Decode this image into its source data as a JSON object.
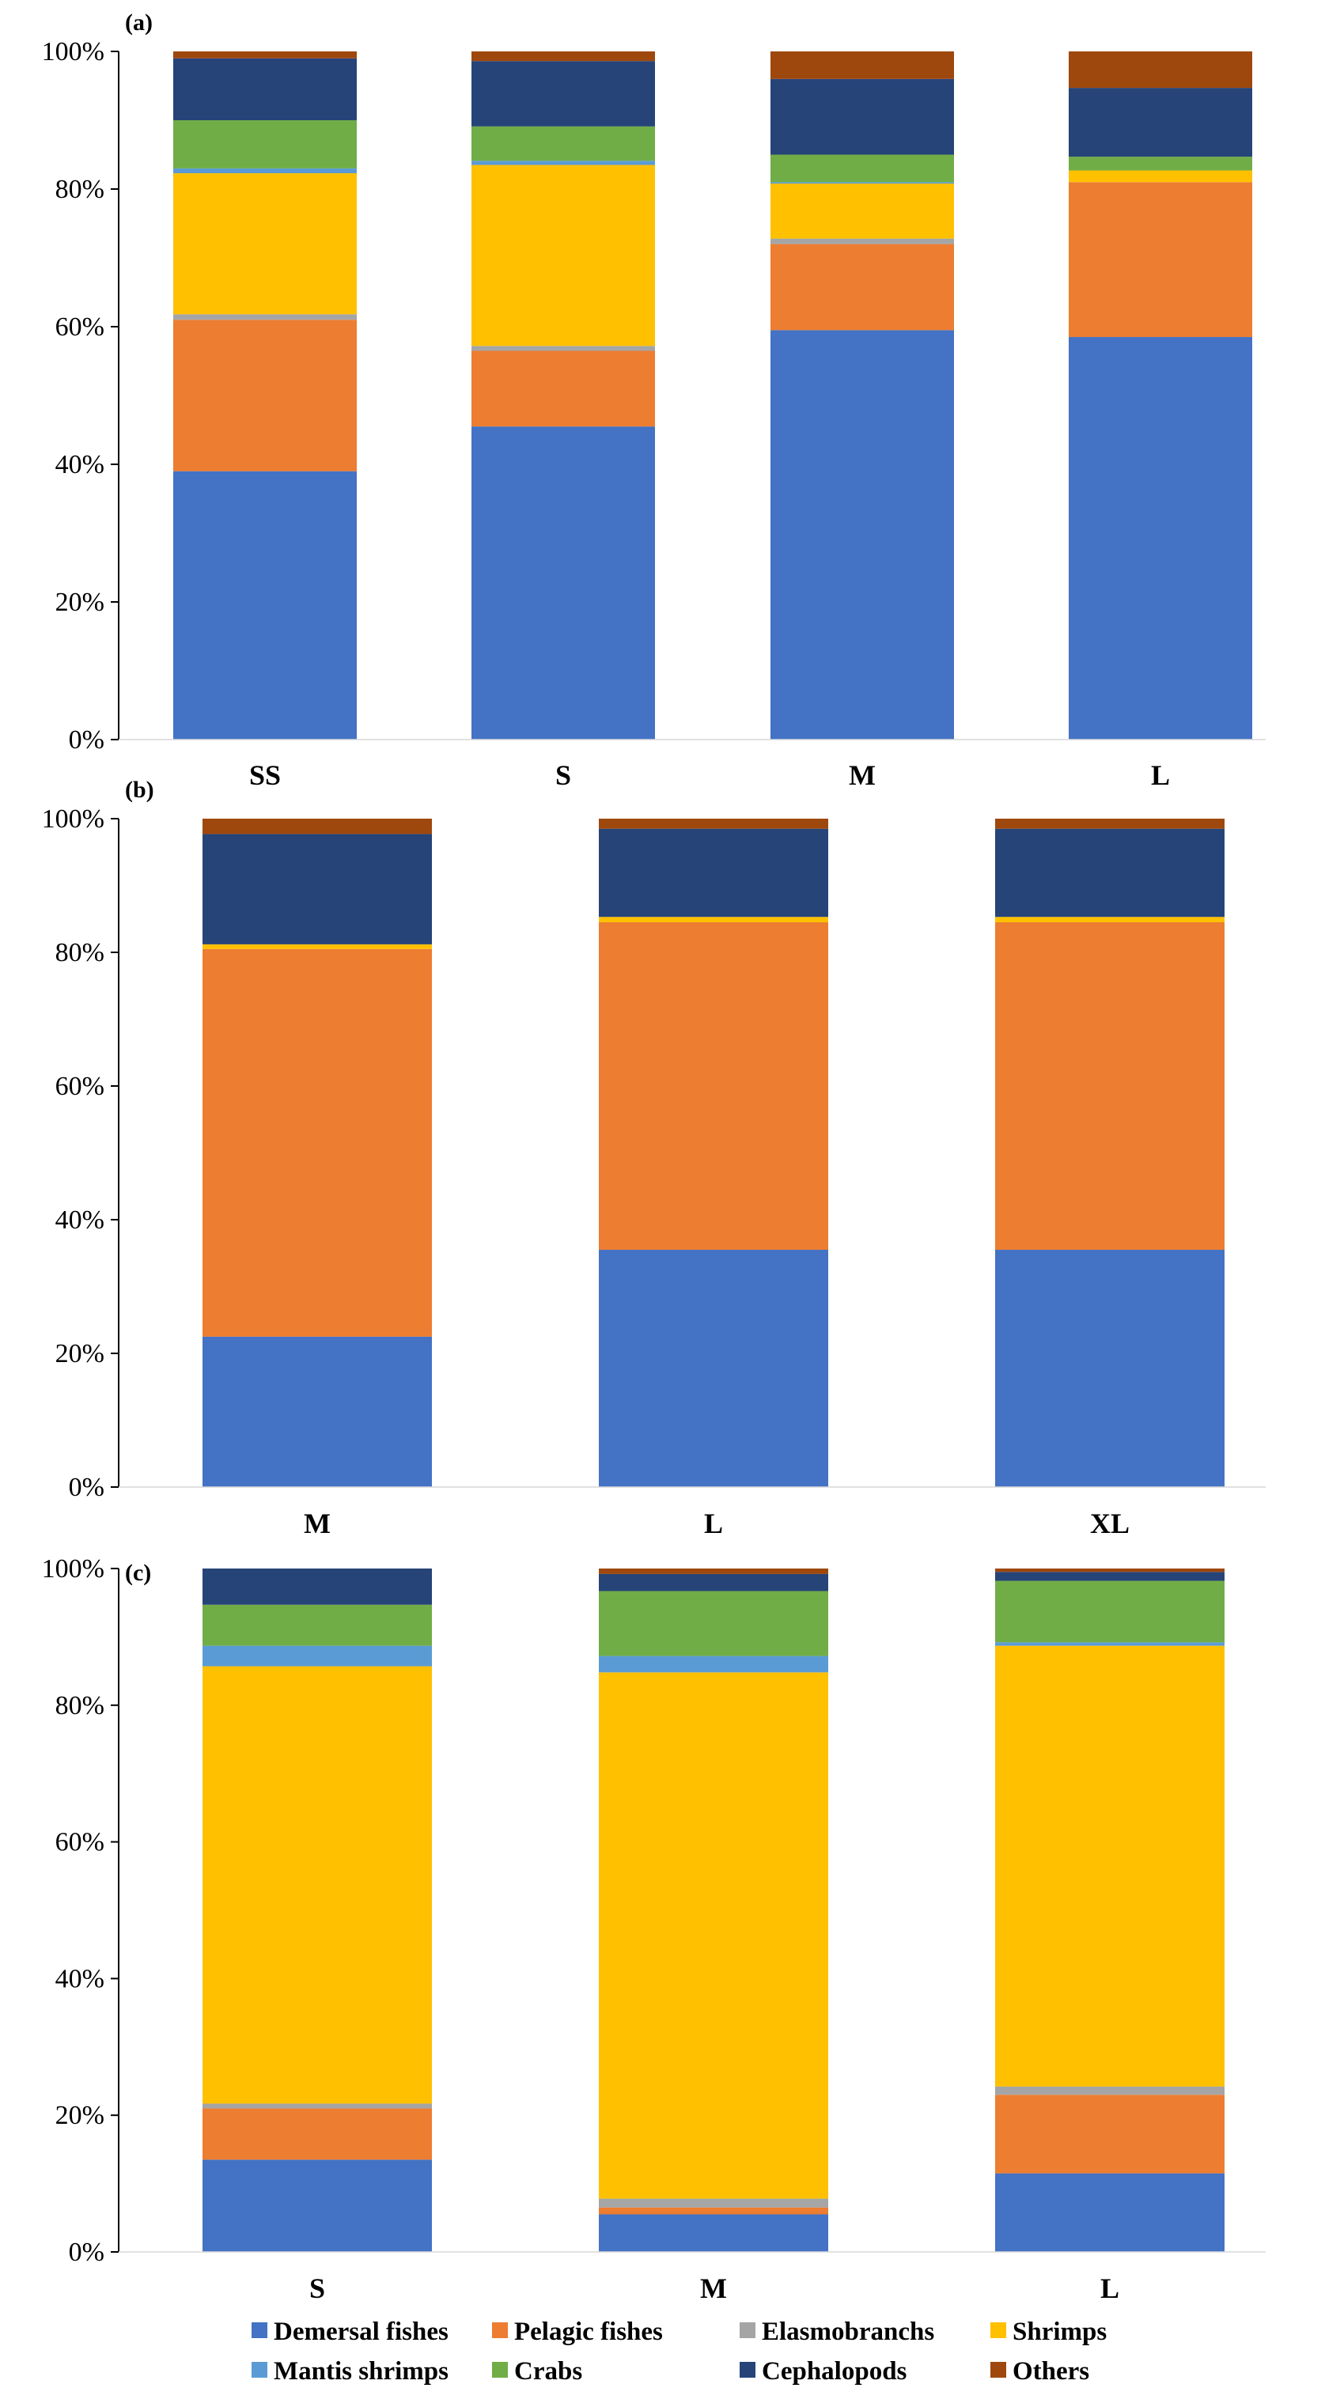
{
  "series_names": [
    "Demersal fishes",
    "Pelagic fishes",
    "Elasmobranchs",
    "Shrimps",
    "Mantis shrimps",
    "Crabs",
    "Cephalopods",
    "Others"
  ],
  "colors": {
    "Demersal fishes": "#4472C4",
    "Pelagic fishes": "#ED7D31",
    "Elasmobranchs": "#A5A5A5",
    "Shrimps": "#FFC000",
    "Mantis shrimps": "#5B9BD5",
    "Crabs": "#70AD47",
    "Cephalopods": "#264478",
    "Others": "#9E480E"
  },
  "legend": {
    "row1": [
      "Demersal fishes",
      "Pelagic fishes",
      "Elasmobranchs",
      "Shrimps"
    ],
    "row2": [
      "Mantis shrimps",
      "Crabs",
      "Cephalopods",
      "Others"
    ]
  },
  "chart_data": [
    {
      "type": "bar",
      "stacked": "percent",
      "panel_label": "(a)",
      "categories": [
        "SS",
        "S",
        "M",
        "L"
      ],
      "yticks": [
        "0%",
        "20%",
        "40%",
        "60%",
        "80%",
        "100%"
      ],
      "ylim": [
        0,
        100
      ],
      "series": [
        {
          "name": "Demersal fishes",
          "values": [
            39,
            45.5,
            59.5,
            58.5
          ]
        },
        {
          "name": "Pelagic fishes",
          "values": [
            22,
            11,
            12.5,
            22.5
          ]
        },
        {
          "name": "Elasmobranchs",
          "values": [
            0.8,
            0.7,
            0.8,
            0
          ]
        },
        {
          "name": "Shrimps",
          "values": [
            20.5,
            26.3,
            8,
            1.7
          ]
        },
        {
          "name": "Mantis shrimps",
          "values": [
            0.7,
            0.6,
            0.2,
            0
          ]
        },
        {
          "name": "Crabs",
          "values": [
            7,
            5,
            4,
            2
          ]
        },
        {
          "name": "Cephalopods",
          "values": [
            9,
            9.5,
            11,
            10
          ]
        },
        {
          "name": "Others",
          "values": [
            1,
            1.4,
            4,
            5.3
          ]
        }
      ]
    },
    {
      "type": "bar",
      "stacked": "percent",
      "panel_label": "(b)",
      "categories": [
        "M",
        "L",
        "XL"
      ],
      "yticks": [
        "0%",
        "20%",
        "40%",
        "60%",
        "80%",
        "100%"
      ],
      "ylim": [
        0,
        100
      ],
      "series": [
        {
          "name": "Demersal fishes",
          "values": [
            22.5,
            35.5,
            35.5
          ]
        },
        {
          "name": "Pelagic fishes",
          "values": [
            58,
            49,
            49
          ]
        },
        {
          "name": "Elasmobranchs",
          "values": [
            0,
            0,
            0
          ]
        },
        {
          "name": "Shrimps",
          "values": [
            0.7,
            0.8,
            0.8
          ]
        },
        {
          "name": "Mantis shrimps",
          "values": [
            0,
            0,
            0
          ]
        },
        {
          "name": "Crabs",
          "values": [
            0,
            0,
            0
          ]
        },
        {
          "name": "Cephalopods",
          "values": [
            16.5,
            13.2,
            13.2
          ]
        },
        {
          "name": "Others",
          "values": [
            2.3,
            1.5,
            1.5
          ]
        }
      ]
    },
    {
      "type": "bar",
      "stacked": "percent",
      "panel_label": "(c)",
      "categories": [
        "S",
        "M",
        "L"
      ],
      "yticks": [
        "0%",
        "20%",
        "40%",
        "60%",
        "80%",
        "100%"
      ],
      "ylim": [
        0,
        100
      ],
      "series": [
        {
          "name": "Demersal fishes",
          "values": [
            13.5,
            5.5,
            11.5
          ]
        },
        {
          "name": "Pelagic fishes",
          "values": [
            7.5,
            1,
            11.5
          ]
        },
        {
          "name": "Elasmobranchs",
          "values": [
            0.7,
            1.3,
            1.2
          ]
        },
        {
          "name": "Shrimps",
          "values": [
            64,
            77,
            64.5
          ]
        },
        {
          "name": "Mantis shrimps",
          "values": [
            3,
            2.4,
            0.5
          ]
        },
        {
          "name": "Crabs",
          "values": [
            6,
            9.5,
            9
          ]
        },
        {
          "name": "Cephalopods",
          "values": [
            5.3,
            2.5,
            1.3
          ]
        },
        {
          "name": "Others",
          "values": [
            0,
            0.8,
            0.5
          ]
        }
      ]
    }
  ]
}
